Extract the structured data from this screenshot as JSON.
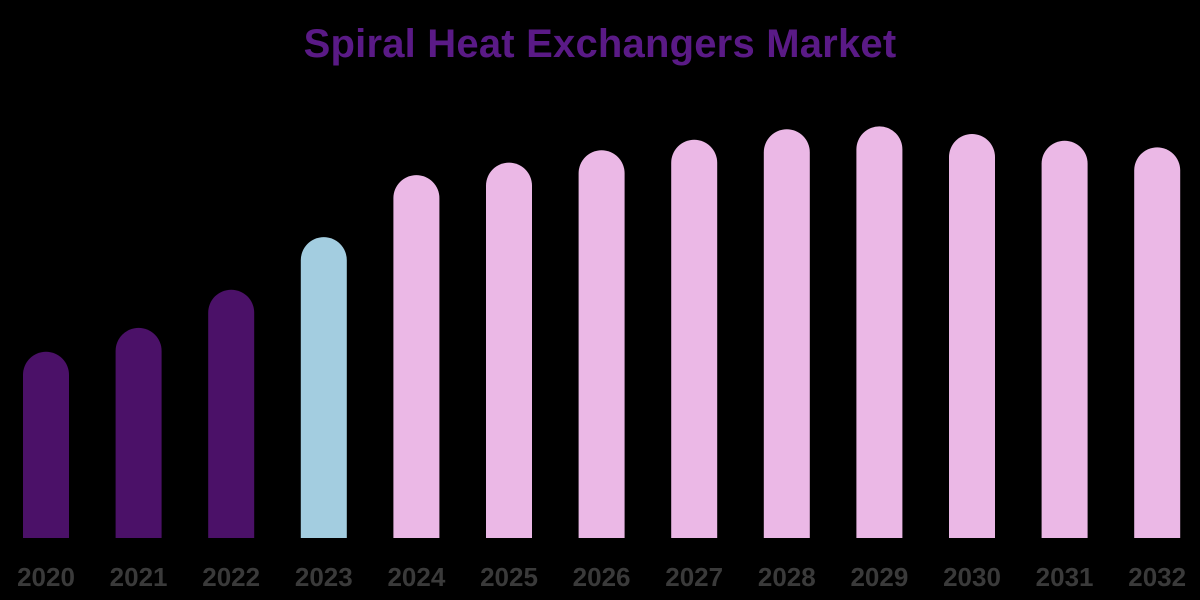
{
  "chart_data": {
    "type": "bar",
    "title": "Spiral Heat Exchangers Market",
    "xlabel": "",
    "ylabel": "",
    "categories": [
      "2020",
      "2021",
      "2022",
      "2023",
      "2024",
      "2025",
      "2026",
      "2027",
      "2028",
      "2029",
      "2030",
      "2031",
      "2032"
    ],
    "values": [
      19.5,
      22,
      26,
      31.5,
      38,
      39.3,
      40.6,
      41.7,
      42.8,
      43.1,
      42.3,
      41.6,
      40.9
    ],
    "bar_colors": [
      "#4b1168",
      "#4b1168",
      "#4b1168",
      "#a3cde0",
      "#ebb8e6",
      "#ebb8e6",
      "#ebb8e6",
      "#ebb8e6",
      "#ebb8e6",
      "#ebb8e6",
      "#ebb8e6",
      "#ebb8e6",
      "#ebb8e6"
    ],
    "ylim": [
      0,
      45
    ],
    "grid": false,
    "legend": "none",
    "title_color": "#5a1a86",
    "tick_label_color": "#3a3a3a"
  }
}
